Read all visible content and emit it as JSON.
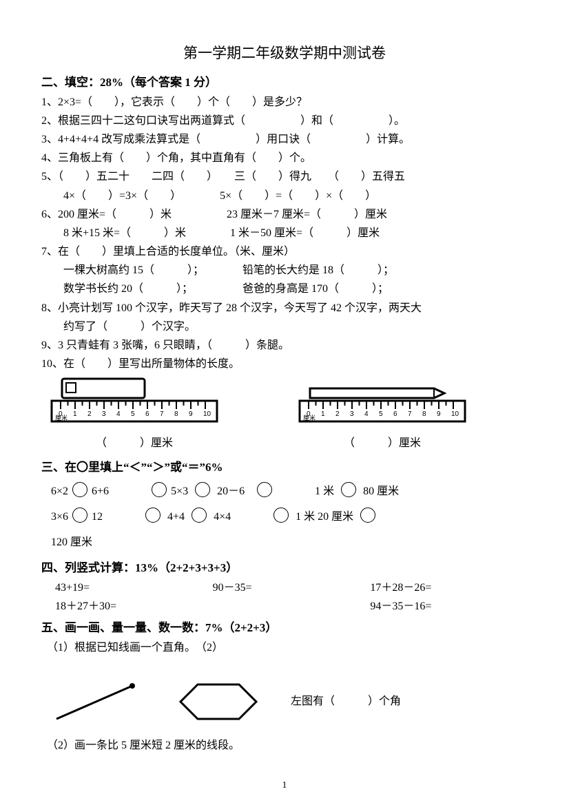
{
  "title": "第一学期二年级数学期中测试卷",
  "s2": {
    "head": "二、填空：28%（每个答案 1 分）",
    "q1": "1、2×3=（　　），它表示（　　）个（　　）是多少？",
    "q2": "2、根据三四十二这句口诀写出两道算式（　　　　　）和（　　　　　）。",
    "q3": "3、4+4+4+4 改写成乘法算式是（　　　　　）用口诀（　　　　　）计算。",
    "q4": "4、三角板上有（　　）个角，其中直角有（　　）个。",
    "q5a": "5、（　　）五二十　　二四（　　）　　三（　　）得九　　（　　）五得五",
    "q5b": "4×（　　）=3×（　　）　　　　5×（　　）=（　　）×（　　）",
    "q6a": "6、200 厘米=（　　　）米　　　　　23 厘米－7 厘米=（　　　）厘米",
    "q6b": "8 米+15 米=（　　　）米　　　　1 米－50 厘米=（　　　）厘米",
    "q7a": "7、在（　　）里填上合适的长度单位。（米、厘米）",
    "q7b": "一棵大树高约 15（　　　）；　　　　铅笔的长大约是 18（　　　）；",
    "q7c": "数学书长约 20（　　　）；　　　　　爸爸的身高是 170（　　　）；",
    "q8a": "8、小亮计划写 100 个汉字，昨天写了 28 个汉字，今天写了 42 个汉字，两天大",
    "q8b": "约写了（　　　）个汉字。",
    "q9": "9、3 只青蛙有 3 张嘴，6 只眼睛，（　　　）条腿。",
    "q10": "10、在（　　）里写出所量物体的长度。",
    "cap1": "（　　　）厘米",
    "cap2": "（　　　）厘米"
  },
  "s3": {
    "head": "三、在〇里填上“＜”“＞”或“＝”6%",
    "r1a": "6×2",
    "r1b": "6+6",
    "r1c": "5×3",
    "r1d": "20－6",
    "r1e": "1 米",
    "r1f": "80 厘米",
    "r2a": "3×6",
    "r2b": "12",
    "r2c": "4+4",
    "r2d": "4×4",
    "r2e": "1 米 20 厘米",
    "r3": "120 厘米"
  },
  "s4": {
    "head": "四、列竖式计算：13%（2+2+3+3+3）",
    "a1": "43+19=",
    "a2": "90－35=",
    "a3": "17＋28－26=",
    "b1": "18＋27＋30=",
    "b3": "94－35－16="
  },
  "s5": {
    "head": "五、画一画、量一量、数一数：7%（2+2+3）",
    "q1": "（1）根据已知线画一个直角。　（2）",
    "hex_note": "左图有（　　　）个角",
    "q2": "（2）画一条比 5 厘米短 2 厘米的线段。"
  },
  "page_number": "1",
  "svg": {
    "ruler_ticks": [
      0,
      1,
      2,
      3,
      4,
      5,
      6,
      7,
      8,
      9,
      10
    ],
    "colors": {
      "stroke": "#000000",
      "paper": "#ffffff"
    }
  }
}
